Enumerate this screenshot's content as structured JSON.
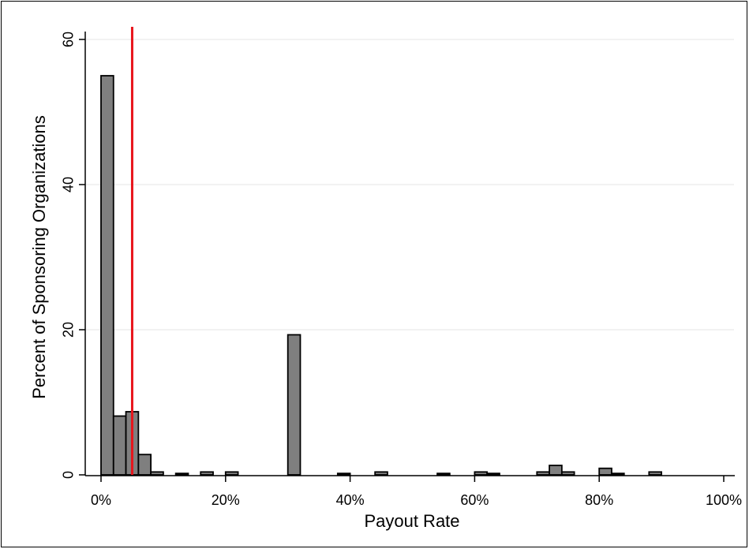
{
  "chart_data": {
    "type": "bar",
    "xlabel": "Payout Rate",
    "ylabel": "Percent of Sponsoring Organizations",
    "xlim": [
      0,
      100
    ],
    "ylim": [
      0,
      60
    ],
    "x_ticks": [
      0,
      20,
      40,
      60,
      80,
      100
    ],
    "x_tick_labels": [
      "0%",
      "20%",
      "40%",
      "60%",
      "80%",
      "100%"
    ],
    "y_ticks": [
      0,
      20,
      40,
      60
    ],
    "y_tick_labels": [
      "0",
      "20",
      "40",
      "60"
    ],
    "grid": true,
    "bin_width": 2,
    "bins": [
      {
        "start": 0,
        "value": 55.0
      },
      {
        "start": 2,
        "value": 8.1
      },
      {
        "start": 4,
        "value": 8.7
      },
      {
        "start": 6,
        "value": 2.8
      },
      {
        "start": 8,
        "value": 0.4
      },
      {
        "start": 12,
        "value": 0.2
      },
      {
        "start": 16,
        "value": 0.4
      },
      {
        "start": 20,
        "value": 0.4
      },
      {
        "start": 30,
        "value": 19.3
      },
      {
        "start": 38,
        "value": 0.2
      },
      {
        "start": 44,
        "value": 0.4
      },
      {
        "start": 54,
        "value": 0.2
      },
      {
        "start": 60,
        "value": 0.4
      },
      {
        "start": 62,
        "value": 0.2
      },
      {
        "start": 70,
        "value": 0.4
      },
      {
        "start": 72,
        "value": 1.3
      },
      {
        "start": 74,
        "value": 0.4
      },
      {
        "start": 80,
        "value": 0.9
      },
      {
        "start": 82,
        "value": 0.2
      },
      {
        "start": 88,
        "value": 0.4
      }
    ],
    "reference_line": {
      "x": 5,
      "color": "#e8141b"
    },
    "bar_fill": "#7f7f7f",
    "bar_stroke": "#000000"
  }
}
